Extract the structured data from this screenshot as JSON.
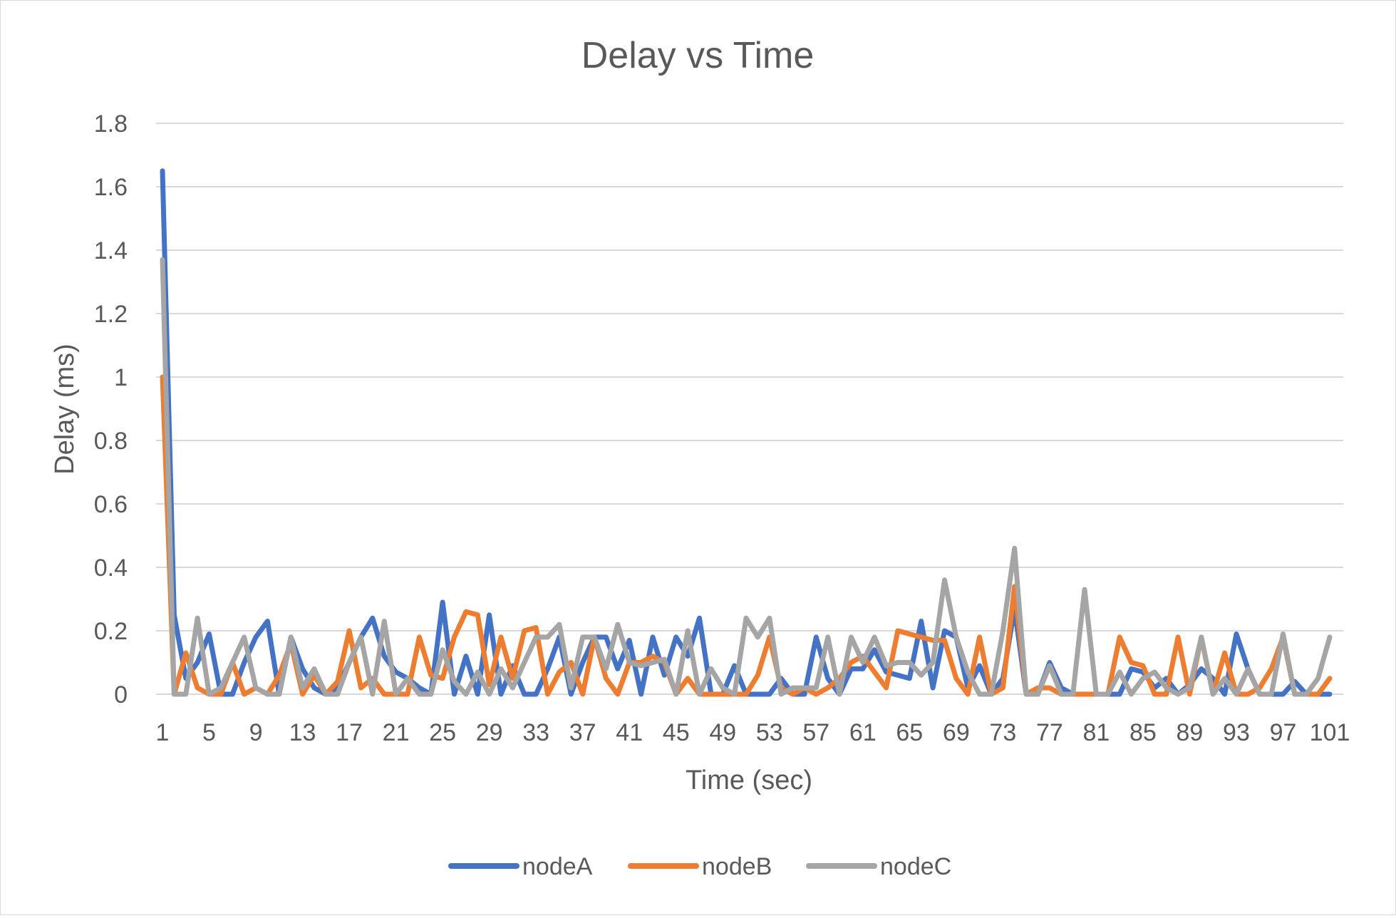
{
  "chart_data": {
    "type": "line",
    "title": "Delay vs Time",
    "xlabel": "Time (sec)",
    "ylabel": "Delay (ms)",
    "ylim": [
      0,
      1.8
    ],
    "yticks": [
      0,
      0.2,
      0.4,
      0.6,
      0.8,
      1,
      1.2,
      1.4,
      1.6,
      1.8
    ],
    "ytick_labels": [
      "0",
      "0.2",
      "0.4",
      "0.6",
      "0.8",
      "1",
      "1.2",
      "1.4",
      "1.6",
      "1.8"
    ],
    "xticks": [
      1,
      5,
      9,
      13,
      17,
      21,
      25,
      29,
      33,
      37,
      41,
      45,
      49,
      53,
      57,
      61,
      65,
      69,
      73,
      77,
      81,
      85,
      89,
      93,
      97,
      101
    ],
    "x": [
      1,
      2,
      3,
      4,
      5,
      6,
      7,
      8,
      9,
      10,
      11,
      12,
      13,
      14,
      15,
      16,
      17,
      18,
      19,
      20,
      21,
      22,
      23,
      24,
      25,
      26,
      27,
      28,
      29,
      30,
      31,
      32,
      33,
      34,
      35,
      36,
      37,
      38,
      39,
      40,
      41,
      42,
      43,
      44,
      45,
      46,
      47,
      48,
      49,
      50,
      51,
      52,
      53,
      54,
      55,
      56,
      57,
      58,
      59,
      60,
      61,
      62,
      63,
      64,
      65,
      66,
      67,
      68,
      69,
      70,
      71,
      72,
      73,
      74,
      75,
      76,
      77,
      78,
      79,
      80,
      81,
      82,
      83,
      84,
      85,
      86,
      87,
      88,
      89,
      90,
      91,
      92,
      93,
      94,
      95,
      96,
      97,
      98,
      99,
      100,
      101
    ],
    "grid": true,
    "legend_position": "bottom",
    "series": [
      {
        "name": "nodeA",
        "color": "#4472C4",
        "values": [
          1.65,
          0.25,
          0.05,
          0.1,
          0.19,
          0,
          0,
          0.1,
          0.18,
          0.23,
          0,
          0.18,
          0.08,
          0.02,
          0,
          0.02,
          0.1,
          0.18,
          0.24,
          0.12,
          0.07,
          0.05,
          0.02,
          0,
          0.29,
          0,
          0.12,
          0,
          0.25,
          0,
          0.09,
          0,
          0,
          0.08,
          0.18,
          0,
          0.1,
          0.18,
          0.18,
          0.08,
          0.17,
          0,
          0.18,
          0.06,
          0.18,
          0.12,
          0.24,
          0,
          0,
          0.09,
          0,
          0,
          0,
          0.05,
          0,
          0,
          0.18,
          0.05,
          0,
          0.08,
          0.08,
          0.14,
          0.07,
          0.06,
          0.05,
          0.23,
          0.02,
          0.2,
          0.18,
          0.02,
          0.09,
          0,
          0.05,
          0.27,
          0,
          0,
          0.1,
          0.02,
          0,
          0,
          0,
          0,
          0,
          0.08,
          0.07,
          0.02,
          0.05,
          0,
          0.03,
          0.08,
          0.05,
          0,
          0.19,
          0.08,
          0,
          0,
          0,
          0.04,
          0,
          0,
          0
        ],
        "color_name": "blue"
      },
      {
        "name": "nodeB",
        "color": "#ED7D31",
        "values": [
          1.0,
          0,
          0.13,
          0.02,
          0,
          0,
          0.1,
          0,
          0.02,
          0,
          0.06,
          0.16,
          0,
          0.06,
          0,
          0.04,
          0.2,
          0.02,
          0.05,
          0,
          0,
          0,
          0.18,
          0.06,
          0.05,
          0.18,
          0.26,
          0.25,
          0.03,
          0.18,
          0.05,
          0.2,
          0.21,
          0,
          0.07,
          0.1,
          0,
          0.18,
          0.05,
          0,
          0.1,
          0.1,
          0.12,
          0.1,
          0,
          0.05,
          0,
          0,
          0,
          0,
          0,
          0.06,
          0.18,
          0.02,
          0,
          0.02,
          0,
          0.02,
          0.05,
          0.1,
          0.12,
          0.07,
          0.02,
          0.2,
          0.19,
          0.18,
          0.17,
          0.17,
          0.05,
          0,
          0.18,
          0,
          0.02,
          0.34,
          0,
          0.02,
          0.02,
          0,
          0,
          0,
          0,
          0,
          0.18,
          0.1,
          0.09,
          0,
          0,
          0.18,
          0,
          0.18,
          0,
          0.13,
          0,
          0,
          0.02,
          0.08,
          0.18,
          0,
          0,
          0,
          0.05
        ],
        "color_name": "orange"
      },
      {
        "name": "nodeC",
        "color": "#A5A5A5",
        "values": [
          1.37,
          0,
          0,
          0.24,
          0,
          0.02,
          0.1,
          0.18,
          0.02,
          0,
          0,
          0.18,
          0.02,
          0.08,
          0,
          0,
          0.1,
          0.18,
          0,
          0.23,
          0,
          0.05,
          0,
          0,
          0.14,
          0.04,
          0,
          0.07,
          0,
          0.08,
          0.02,
          0.1,
          0.18,
          0.18,
          0.22,
          0.02,
          0.18,
          0.18,
          0.08,
          0.22,
          0.1,
          0.09,
          0.1,
          0.11,
          0,
          0.2,
          0,
          0.08,
          0.02,
          0,
          0.24,
          0.18,
          0.24,
          0,
          0.02,
          0.02,
          0.02,
          0.18,
          0,
          0.18,
          0.1,
          0.18,
          0.09,
          0.1,
          0.1,
          0.06,
          0.1,
          0.36,
          0.18,
          0.07,
          0,
          0,
          0.2,
          0.46,
          0,
          0,
          0.09,
          0,
          0,
          0.33,
          0,
          0,
          0.07,
          0,
          0.05,
          0.07,
          0.02,
          0,
          0.02,
          0.18,
          0,
          0.05,
          0,
          0.08,
          0,
          0,
          0.19,
          0,
          0,
          0.05,
          0.18
        ],
        "color_name": "gray"
      }
    ]
  }
}
